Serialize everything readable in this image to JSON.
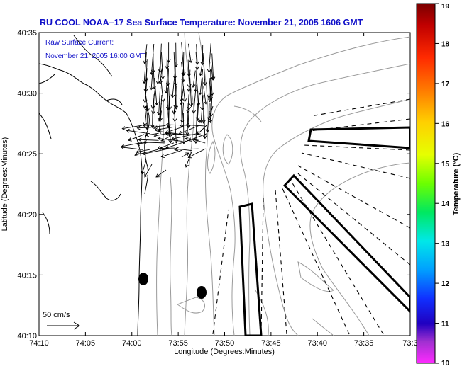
{
  "title": "RU COOL  NOAA–17  Sea Surface Temperature:  November 21, 2005 1606 GMT",
  "legend": {
    "line1": "Raw Surface Current:",
    "line2": "November 21, 2005 16:00 GMT",
    "scale_label": "50 cm/s"
  },
  "axes": {
    "x_title": "Longitude (Degrees:Minutes)",
    "y_title": "Latitude (Degrees:Minutes)",
    "x_ticks": [
      "74:10",
      "74:05",
      "74:00",
      "73:55",
      "73:50",
      "73:45",
      "73:40",
      "73:35",
      "73:3"
    ],
    "y_ticks": [
      "40:35",
      "40:30",
      "40:25",
      "40:20",
      "40:15",
      "40:10"
    ]
  },
  "colorbar": {
    "title": "Temperature (°C)",
    "min": 10,
    "max": 19,
    "labels": [
      "19",
      "18",
      "17",
      "16",
      "15",
      "14",
      "13",
      "12",
      "11",
      "10"
    ]
  },
  "colors": {
    "title": "#1010c8",
    "land_outline": "#000000",
    "isobath": "#9a9a9a",
    "vectors": "#000000"
  }
}
